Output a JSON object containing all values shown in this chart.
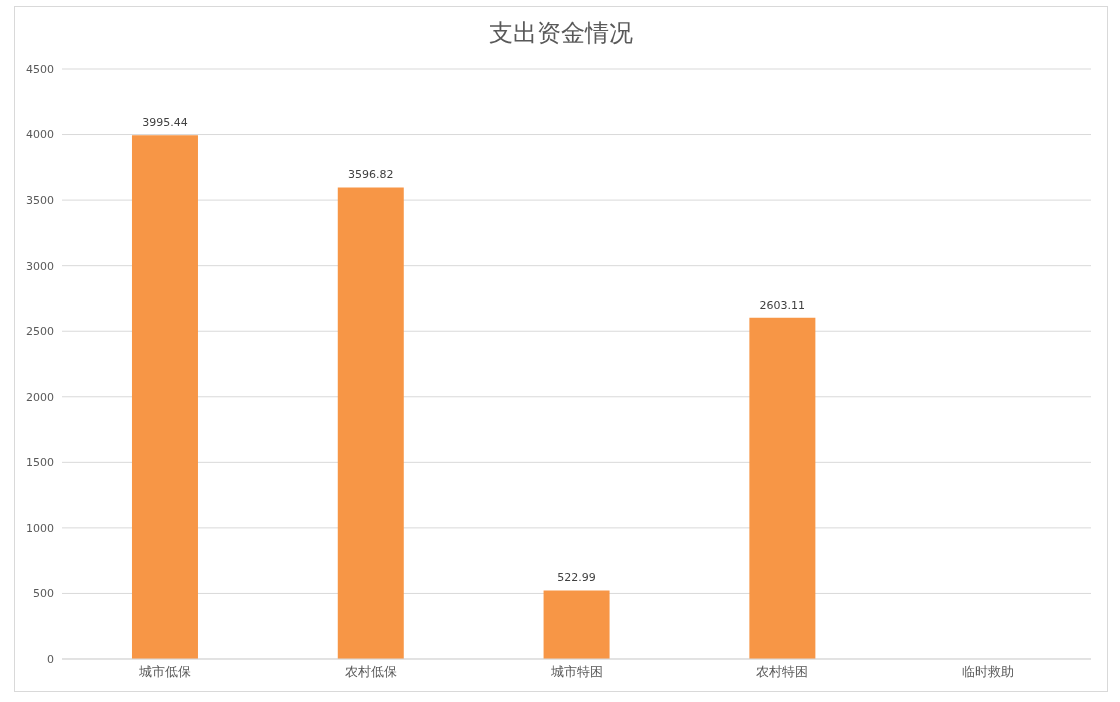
{
  "chart_data": {
    "type": "bar",
    "title": "支出资金情况",
    "categories": [
      "城市低保",
      "农村低保",
      "城市特困",
      "农村特困",
      "临时救助"
    ],
    "values": [
      3995.44,
      3596.82,
      522.99,
      2603.11,
      null
    ],
    "color": "#f79646",
    "ylim": [
      0,
      4500
    ],
    "yticks": [
      0,
      500,
      1000,
      1500,
      2000,
      2500,
      3000,
      3500,
      4000,
      4500
    ],
    "grid": "y",
    "data_labels": true
  }
}
